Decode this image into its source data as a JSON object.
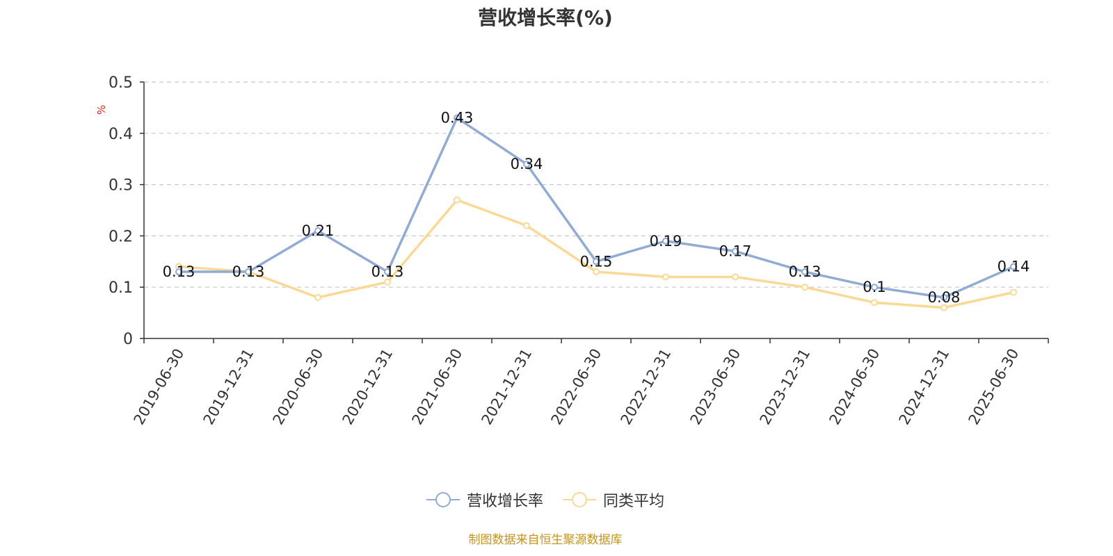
{
  "chart_data": {
    "type": "line",
    "title": "营收增长率(%)",
    "ylabel": "%",
    "xlabel": "",
    "ylim": [
      0,
      0.5
    ],
    "yticks": [
      0,
      0.1,
      0.2,
      0.3,
      0.4,
      0.5
    ],
    "ytick_labels": [
      "0",
      "0.1",
      "0.2",
      "0.3",
      "0.4",
      "0.5"
    ],
    "grid": true,
    "legend_position": "bottom-center",
    "categories": [
      "2019-06-30",
      "2019-12-31",
      "2020-06-30",
      "2020-12-31",
      "2021-06-30",
      "2021-12-31",
      "2022-06-30",
      "2022-12-31",
      "2023-06-30",
      "2023-12-31",
      "2024-06-30",
      "2024-12-31",
      "2025-06-30"
    ],
    "series": [
      {
        "name": "营收增长率",
        "color": "#8fabd6",
        "values": [
          0.13,
          0.13,
          0.21,
          0.13,
          0.43,
          0.34,
          0.15,
          0.19,
          0.17,
          0.13,
          0.1,
          0.08,
          0.14
        ],
        "labels": [
          "0.13",
          "0.13",
          "0.21",
          "0.13",
          "0.43",
          "0.34",
          "0.15",
          "0.19",
          "0.17",
          "0.13",
          "0.1",
          "0.08",
          "0.14"
        ]
      },
      {
        "name": "同类平均",
        "color": "#fbd994",
        "values": [
          0.14,
          0.13,
          0.08,
          0.11,
          0.27,
          0.22,
          0.13,
          0.12,
          0.12,
          0.1,
          0.07,
          0.06,
          0.09
        ]
      }
    ]
  },
  "source_note": "制图数据来自恒生聚源数据库"
}
